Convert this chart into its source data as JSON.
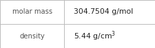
{
  "rows": [
    {
      "label": "molar mass",
      "value_plain": "304.7504 g/mol",
      "value_math": "304.7504 g/mol",
      "has_super": false
    },
    {
      "label": "density",
      "value_plain": "5.44 g/cm³",
      "value_math": "5.44 g/cm$^3$",
      "has_super": true
    }
  ],
  "bg_color": "#ffffff",
  "border_color": "#bbbbbb",
  "label_color": "#555555",
  "value_color": "#222222",
  "label_fontsize": 7.2,
  "value_fontsize": 7.8,
  "col_split": 0.415,
  "figwidth": 2.25,
  "figheight": 0.7,
  "dpi": 100
}
